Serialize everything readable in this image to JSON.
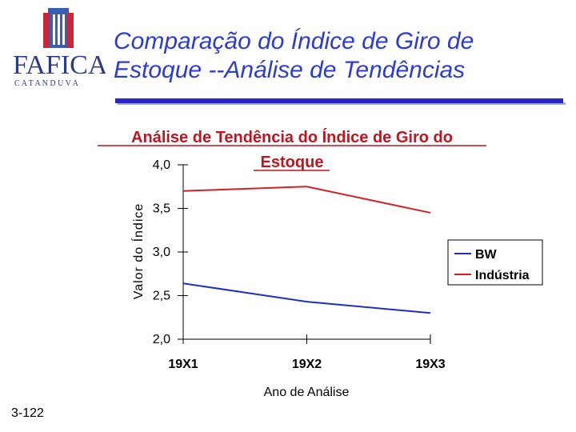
{
  "slide": {
    "title_line1": "Comparação do Índice de Giro de",
    "title_line2": "Estoque --Análise de Tendências",
    "page_number": "3-122",
    "accent_color": "#2424c8"
  },
  "logo": {
    "text": "FAFICA",
    "subtext": "C A T A N D U V A",
    "icon": "building-icon"
  },
  "chart_data": {
    "type": "line",
    "title": "Análise de Tendência do Índice de Giro do Estoque",
    "title_line1": "Análise de Tendência do Índice de Giro do",
    "title_line2": "Estoque",
    "xlabel": "Ano de Análise",
    "ylabel": "Valor do Índice",
    "categories": [
      "19X1",
      "19X2",
      "19X3"
    ],
    "yticks": [
      "2,0",
      "2,5",
      "3,0",
      "3,5",
      "4,0"
    ],
    "ylim": [
      2.0,
      4.0
    ],
    "grid": false,
    "legend_position": "right",
    "series": [
      {
        "name": "BW",
        "color": "#1f2fbf",
        "values": [
          2.64,
          2.43,
          2.3
        ]
      },
      {
        "name": "Indústria",
        "color": "#d42020",
        "values": [
          3.7,
          3.75,
          3.45
        ]
      }
    ]
  }
}
